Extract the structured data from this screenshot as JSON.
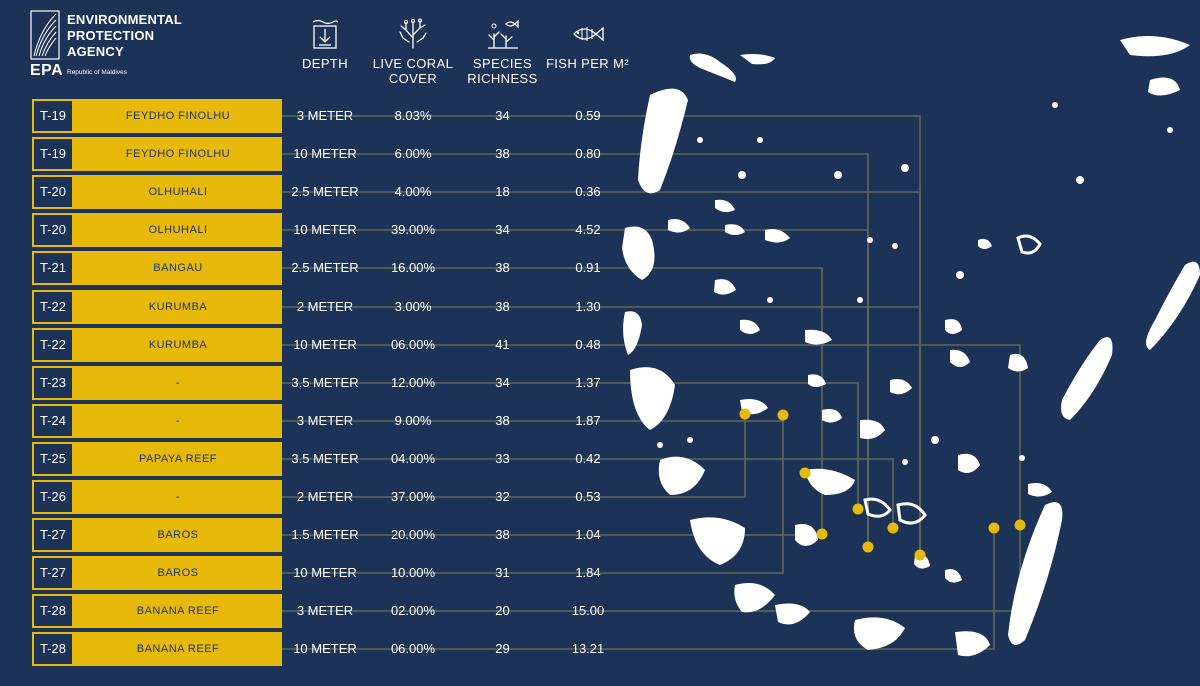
{
  "org": {
    "line1": "ENVIRONMENTAL",
    "line2": "PROTECTION",
    "line3": "AGENCY",
    "abbr": "EPA",
    "subtitle": "Republic of Maldives"
  },
  "columns": {
    "depth": "DEPTH",
    "coral_1": "LIVE CORAL",
    "coral_2": "COVER",
    "richness_1": "SPECIES",
    "richness_2": "RICHNESS",
    "fish": "FISH PER M²"
  },
  "icons": [
    "depth-icon",
    "coral-icon",
    "species-icon",
    "fish-icon"
  ],
  "colors": {
    "background": "#1d3257",
    "accent": "#e6b90a",
    "land": "#ffffff"
  },
  "sites": [
    {
      "code": "T-19",
      "name": "FEYDHO FINOLHU",
      "depth": "3 METER",
      "coral": "8.03%",
      "richness": "34",
      "fish": "0.59"
    },
    {
      "code": "T-19",
      "name": "FEYDHO FINOLHU",
      "depth": "10 METER",
      "coral": "6.00%",
      "richness": "38",
      "fish": "0.80"
    },
    {
      "code": "T-20",
      "name": "OLHUHALI",
      "depth": "2.5 METER",
      "coral": "4.00%",
      "richness": "18",
      "fish": "0.36"
    },
    {
      "code": "T-20",
      "name": "OLHUHALI",
      "depth": "10 METER",
      "coral": "39.00%",
      "richness": "34",
      "fish": "4.52"
    },
    {
      "code": "T-21",
      "name": "BANGAU",
      "depth": "2.5 METER",
      "coral": "16.00%",
      "richness": "38",
      "fish": "0.91"
    },
    {
      "code": "T-22",
      "name": "KURUMBA",
      "depth": "2 METER",
      "coral": "3.00%",
      "richness": "38",
      "fish": "1.30"
    },
    {
      "code": "T-22",
      "name": "KURUMBA",
      "depth": "10 METER",
      "coral": "06.00%",
      "richness": "41",
      "fish": "0.48"
    },
    {
      "code": "T-23",
      "name": "-",
      "depth": "3.5 METER",
      "coral": "12.00%",
      "richness": "34",
      "fish": "1.37"
    },
    {
      "code": "T-24",
      "name": "-",
      "depth": "3 METER",
      "coral": "9.00%",
      "richness": "38",
      "fish": "1.87"
    },
    {
      "code": "T-25",
      "name": "PAPAYA REEF",
      "depth": "3.5 METER",
      "coral": "04.00%",
      "richness": "33",
      "fish": "0.42"
    },
    {
      "code": "T-26",
      "name": "-",
      "depth": "2 METER",
      "coral": "37.00%",
      "richness": "32",
      "fish": "0.53"
    },
    {
      "code": "T-27",
      "name": "BAROS",
      "depth": "1.5 METER",
      "coral": "20.00%",
      "richness": "38",
      "fish": "1.04"
    },
    {
      "code": "T-27",
      "name": "BAROS",
      "depth": "10 METER",
      "coral": "10.00%",
      "richness": "31",
      "fish": "1.84"
    },
    {
      "code": "T-28",
      "name": "BANANA REEF",
      "depth": "3 METER",
      "coral": "02.00%",
      "richness": "20",
      "fish": "15.00"
    },
    {
      "code": "T-28",
      "name": "BANANA REEF",
      "depth": "10 METER",
      "coral": "06.00%",
      "richness": "29",
      "fish": "13.21"
    }
  ]
}
